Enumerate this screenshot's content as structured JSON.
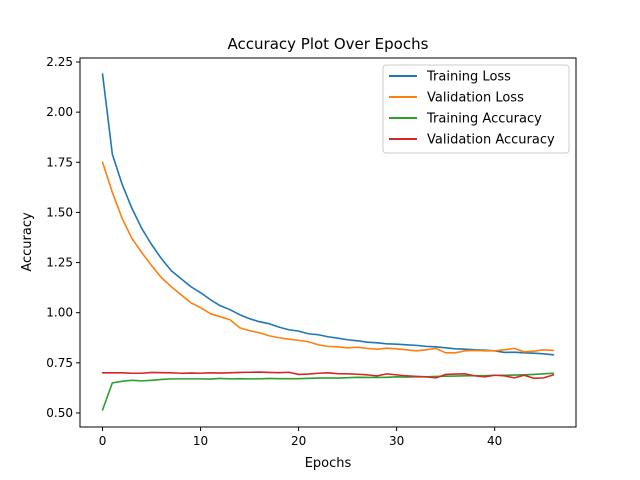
{
  "chart_data": {
    "type": "line",
    "title": "Accuracy Plot Over Epochs",
    "xlabel": "Epochs",
    "ylabel": "Accuracy",
    "xlim": [
      -2.3,
      48.3
    ],
    "ylim": [
      0.43,
      2.27
    ],
    "xticks": [
      0,
      10,
      20,
      30,
      40
    ],
    "yticks": [
      0.5,
      0.75,
      1.0,
      1.25,
      1.5,
      1.75,
      2.0,
      2.25
    ],
    "ytick_labels": [
      "0.50",
      "0.75",
      "1.00",
      "1.25",
      "1.50",
      "1.75",
      "2.00",
      "2.25"
    ],
    "grid": false,
    "legend_position": "top-right",
    "x": [
      0,
      1,
      2,
      3,
      4,
      5,
      6,
      7,
      8,
      9,
      10,
      11,
      12,
      13,
      14,
      15,
      16,
      17,
      18,
      19,
      20,
      21,
      22,
      23,
      24,
      25,
      26,
      27,
      28,
      29,
      30,
      31,
      32,
      33,
      34,
      35,
      36,
      37,
      38,
      39,
      40,
      41,
      42,
      43,
      44,
      45,
      46
    ],
    "series": [
      {
        "name": "Training Loss",
        "color": "#1f77b4",
        "values": [
          2.19,
          1.79,
          1.64,
          1.52,
          1.42,
          1.34,
          1.27,
          1.21,
          1.17,
          1.13,
          1.1,
          1.065,
          1.035,
          1.015,
          0.99,
          0.97,
          0.955,
          0.945,
          0.928,
          0.915,
          0.908,
          0.895,
          0.89,
          0.88,
          0.873,
          0.865,
          0.86,
          0.853,
          0.85,
          0.845,
          0.843,
          0.84,
          0.837,
          0.832,
          0.83,
          0.825,
          0.82,
          0.818,
          0.815,
          0.813,
          0.81,
          0.802,
          0.803,
          0.8,
          0.798,
          0.795,
          0.79
        ]
      },
      {
        "name": "Validation Loss",
        "color": "#ff7f0e",
        "values": [
          1.75,
          1.6,
          1.47,
          1.37,
          1.3,
          1.235,
          1.175,
          1.13,
          1.09,
          1.05,
          1.025,
          0.995,
          0.98,
          0.965,
          0.925,
          0.91,
          0.9,
          0.885,
          0.875,
          0.868,
          0.862,
          0.855,
          0.84,
          0.832,
          0.83,
          0.825,
          0.828,
          0.822,
          0.818,
          0.823,
          0.82,
          0.815,
          0.81,
          0.815,
          0.822,
          0.8,
          0.8,
          0.81,
          0.812,
          0.81,
          0.81,
          0.815,
          0.822,
          0.805,
          0.808,
          0.815,
          0.812
        ]
      },
      {
        "name": "Training Accuracy",
        "color": "#2ca02c",
        "values": [
          0.515,
          0.65,
          0.658,
          0.663,
          0.66,
          0.663,
          0.667,
          0.67,
          0.67,
          0.67,
          0.67,
          0.669,
          0.672,
          0.67,
          0.671,
          0.67,
          0.67,
          0.672,
          0.671,
          0.671,
          0.671,
          0.673,
          0.674,
          0.675,
          0.674,
          0.676,
          0.678,
          0.677,
          0.677,
          0.678,
          0.68,
          0.679,
          0.681,
          0.68,
          0.682,
          0.683,
          0.684,
          0.685,
          0.686,
          0.686,
          0.688,
          0.688,
          0.689,
          0.69,
          0.692,
          0.695,
          0.698
        ]
      },
      {
        "name": "Validation Accuracy",
        "color": "#d62728",
        "values": [
          0.7,
          0.7,
          0.7,
          0.698,
          0.698,
          0.702,
          0.701,
          0.7,
          0.698,
          0.699,
          0.698,
          0.7,
          0.699,
          0.7,
          0.702,
          0.703,
          0.704,
          0.702,
          0.701,
          0.703,
          0.692,
          0.694,
          0.698,
          0.7,
          0.696,
          0.695,
          0.693,
          0.69,
          0.685,
          0.695,
          0.69,
          0.685,
          0.682,
          0.68,
          0.675,
          0.692,
          0.694,
          0.695,
          0.685,
          0.68,
          0.688,
          0.685,
          0.675,
          0.688,
          0.673,
          0.675,
          0.69
        ]
      }
    ]
  }
}
